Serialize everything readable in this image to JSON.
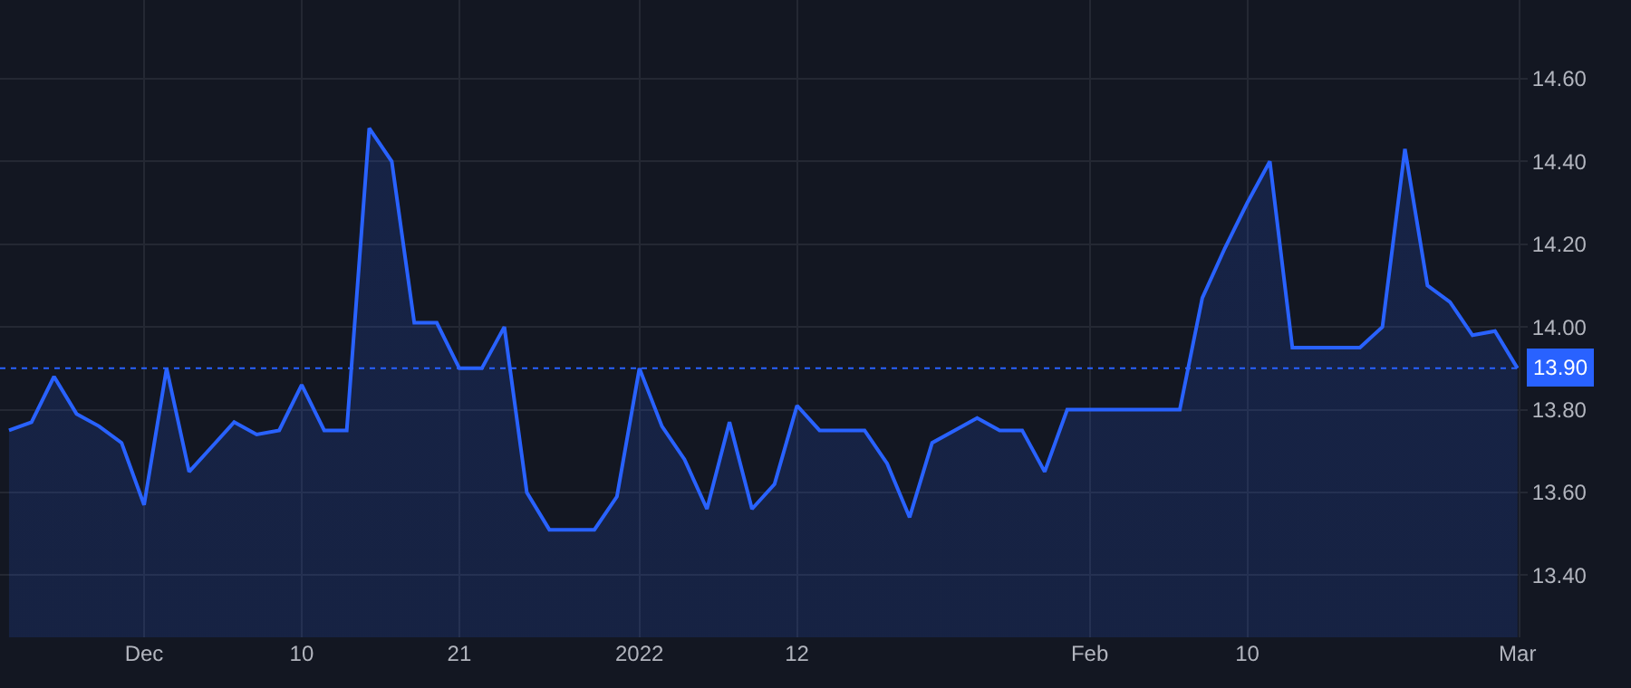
{
  "chart_data": {
    "type": "area",
    "categories": [
      null,
      null,
      null,
      null,
      null,
      null,
      "Dec",
      null,
      null,
      null,
      null,
      null,
      null,
      "10",
      null,
      null,
      null,
      null,
      null,
      null,
      "21",
      null,
      null,
      null,
      null,
      null,
      null,
      null,
      "2022",
      null,
      null,
      null,
      null,
      null,
      null,
      "12",
      null,
      null,
      null,
      null,
      null,
      null,
      null,
      null,
      null,
      null,
      null,
      null,
      "Feb",
      null,
      null,
      null,
      null,
      null,
      null,
      "10",
      null,
      null,
      null,
      null,
      null,
      null,
      null,
      null,
      null,
      null,
      null,
      "Mar"
    ],
    "series": [
      {
        "color": "#2962ff",
        "values": [
          13.75,
          13.77,
          13.88,
          13.79,
          13.76,
          13.72,
          13.57,
          13.9,
          13.65,
          13.71,
          13.77,
          13.74,
          13.75,
          13.86,
          13.75,
          13.75,
          14.48,
          14.4,
          14.01,
          14.01,
          13.9,
          13.9,
          14.0,
          13.6,
          13.51,
          13.51,
          13.51,
          13.59,
          13.9,
          13.76,
          13.68,
          13.56,
          13.77,
          13.56,
          13.62,
          13.81,
          13.75,
          13.75,
          13.75,
          13.67,
          13.54,
          13.72,
          13.75,
          13.78,
          13.75,
          13.75,
          13.65,
          13.8,
          13.8,
          13.8,
          13.8,
          13.8,
          13.8,
          14.07,
          14.19,
          14.3,
          14.4,
          13.95,
          13.95,
          13.95,
          13.95,
          14.0,
          14.43,
          14.1,
          14.06,
          13.98,
          13.99,
          13.9
        ]
      }
    ],
    "ylim": [
      13.25,
      14.79
    ],
    "yticks": [
      {
        "value": 13.4,
        "label": "13.40"
      },
      {
        "value": 13.6,
        "label": "13.60"
      },
      {
        "value": 13.8,
        "label": "13.80"
      },
      {
        "value": 14.0,
        "label": "14.00"
      },
      {
        "value": 14.2,
        "label": "14.20"
      },
      {
        "value": 14.4,
        "label": "14.40"
      },
      {
        "value": 14.6,
        "label": "14.60"
      }
    ],
    "ref_lines": [
      {
        "axis": "y",
        "value": 13.9,
        "label": "13.90",
        "color": "#2962ff",
        "line_style": "dotted"
      }
    ],
    "grid": true,
    "marker": "none",
    "line_style": "solid"
  }
}
